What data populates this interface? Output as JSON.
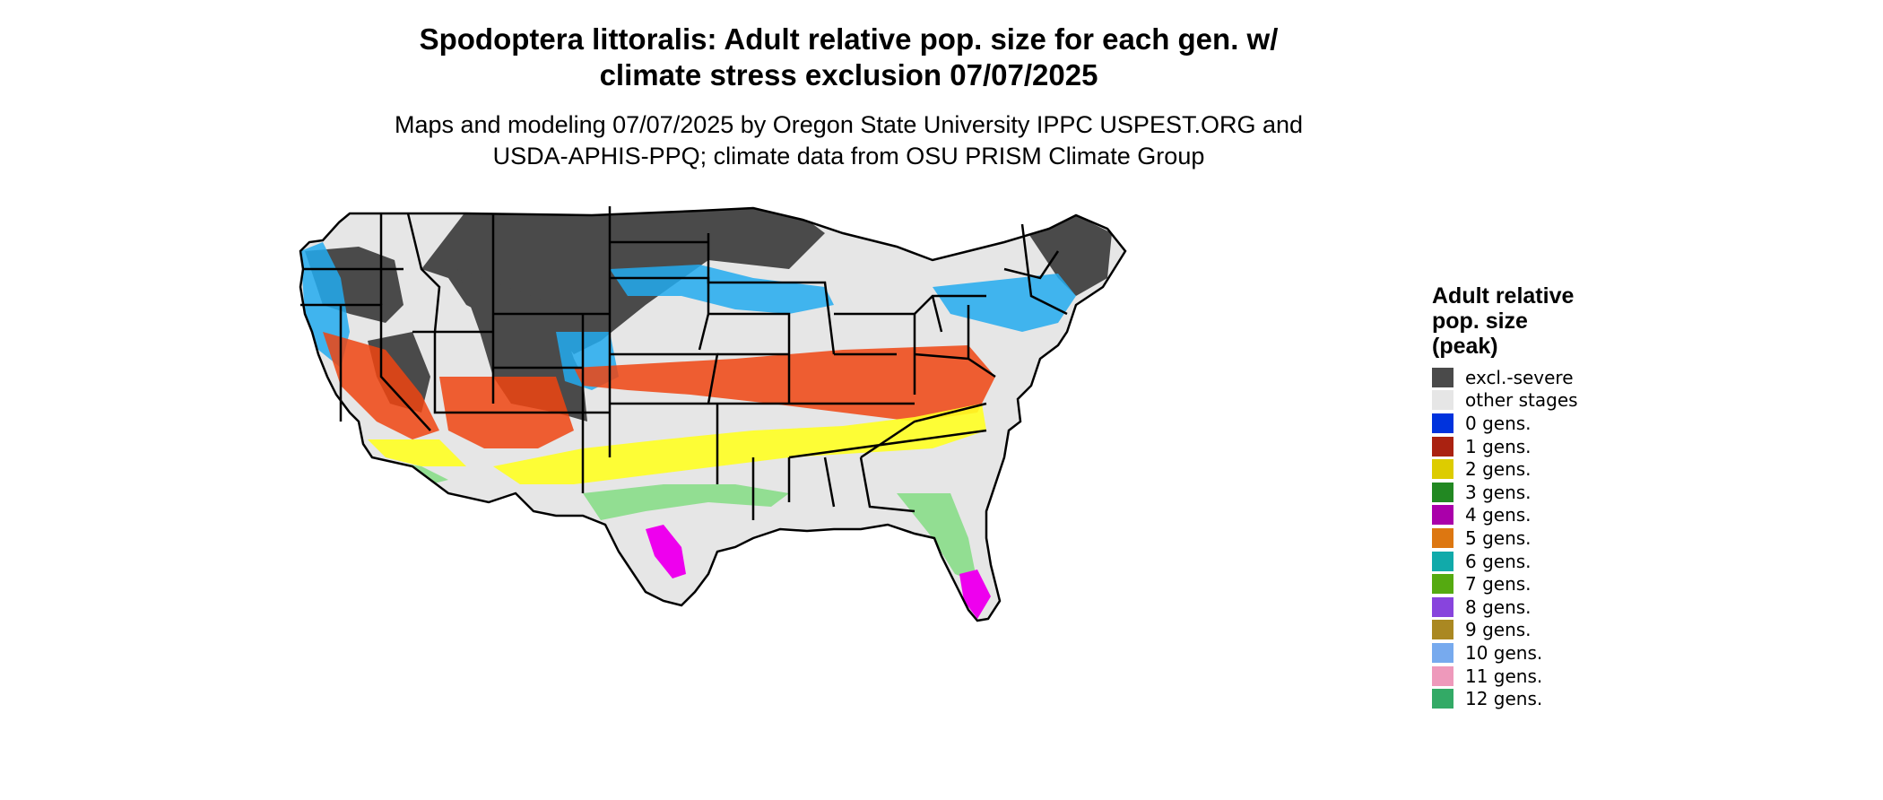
{
  "title_line1": "Spodoptera littoralis: Adult relative pop. size for each gen. w/",
  "title_line2": "climate stress exclusion 07/07/2025",
  "subtitle_line1": "Maps and modeling 07/07/2025 by Oregon State University IPPC USPEST.ORG and",
  "subtitle_line2": "USDA-APHIS-PPQ; climate data from OSU PRISM Climate Group",
  "legend": {
    "title_line1": "Adult relative",
    "title_line2": "pop. size",
    "title_line3": "(peak)",
    "items": [
      {
        "label": "excl.-severe",
        "color": "#4a4a4a"
      },
      {
        "label": "other stages",
        "color": "#e6e6e6"
      },
      {
        "label": "0 gens.",
        "color": "#0033dd"
      },
      {
        "label": "1 gens.",
        "color": "#aa2211"
      },
      {
        "label": "2 gens.",
        "color": "#ddcc00"
      },
      {
        "label": "3 gens.",
        "color": "#228822"
      },
      {
        "label": "4 gens.",
        "color": "#aa00aa"
      },
      {
        "label": "5 gens.",
        "color": "#dd7711"
      },
      {
        "label": "6 gens.",
        "color": "#11aaaa"
      },
      {
        "label": "7 gens.",
        "color": "#55aa11"
      },
      {
        "label": "8 gens.",
        "color": "#8844dd"
      },
      {
        "label": "9 gens.",
        "color": "#aa8822"
      },
      {
        "label": "10 gens.",
        "color": "#77aaee"
      },
      {
        "label": "11 gens.",
        "color": "#ee99bb"
      },
      {
        "label": "12 gens.",
        "color": "#33aa66"
      }
    ]
  },
  "map_colors": {
    "exclusion": "#4a4a4a",
    "other": "#e6e6e6",
    "light_blue": "#22aaee",
    "orange_red": "#ee4411",
    "yellow": "#ffff22",
    "light_green": "#88dd88",
    "magenta": "#ee00ee",
    "border": "#000000"
  }
}
